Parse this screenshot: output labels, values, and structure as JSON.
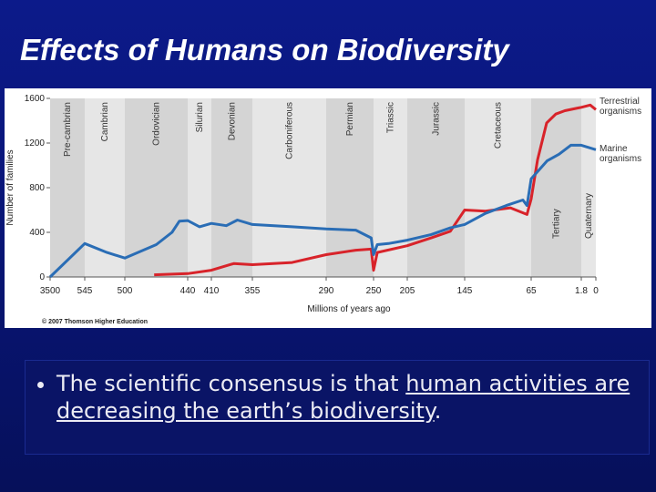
{
  "slide_title": "Effects of Humans on Biodiversity",
  "bullet": {
    "segments": [
      {
        "text": "The scientific consensus is that ",
        "underline": false
      },
      {
        "text": "human activities are decreasing the earth’s biodiversity",
        "underline": true
      },
      {
        "text": ".",
        "underline": false
      }
    ]
  },
  "chart_data": {
    "type": "line",
    "ylabel": "Number of families",
    "xlabel": "Millions of years ago",
    "credit": "© 2007 Thomson Higher Education",
    "ylim": [
      0,
      1600
    ],
    "yticks": [
      0,
      400,
      800,
      1200,
      1600
    ],
    "xlim": [
      3500,
      0
    ],
    "xticks": [
      3500,
      545,
      500,
      440,
      410,
      355,
      290,
      250,
      205,
      145,
      65,
      1.8,
      0
    ],
    "periods": [
      "Pre-cambrian",
      "Cambrian",
      "Ordovician",
      "Silurian",
      "Devonian",
      "Carboniferous",
      "Permian",
      "Triassic",
      "Jurassic",
      "Cretaceous",
      "Tertiary",
      "Quaternary"
    ],
    "series": [
      {
        "name": "Terrestrial organisms",
        "color": "#d8232a",
        "x": [
          472,
          440,
          410,
          380,
          355,
          320,
          290,
          265,
          252,
          250,
          245,
          205,
          180,
          160,
          145,
          120,
          90,
          70,
          65,
          57,
          45.5,
          34,
          22.5,
          1.8,
          0.7,
          0
        ],
        "values": [
          20,
          30,
          60,
          120,
          110,
          130,
          200,
          240,
          250,
          60,
          220,
          280,
          350,
          410,
          600,
          590,
          620,
          560,
          700,
          1050,
          1380,
          1460,
          1490,
          1520,
          1540,
          1500
        ]
      },
      {
        "name": "Marine organisms",
        "color": "#2a6db5",
        "x": [
          3500,
          545,
          520,
          500,
          470,
          455,
          448,
          440,
          425,
          410,
          390,
          375,
          355,
          320,
          290,
          265,
          252,
          250,
          245,
          230,
          205,
          180,
          160,
          145,
          120,
          95,
          75,
          70,
          65,
          45,
          30,
          15,
          1.8,
          0
        ],
        "values": [
          0,
          300,
          220,
          170,
          290,
          400,
          500,
          505,
          450,
          480,
          460,
          510,
          470,
          450,
          430,
          420,
          350,
          200,
          290,
          300,
          330,
          380,
          440,
          470,
          570,
          640,
          690,
          640,
          880,
          1040,
          1100,
          1180,
          1180,
          1140
        ]
      }
    ]
  }
}
